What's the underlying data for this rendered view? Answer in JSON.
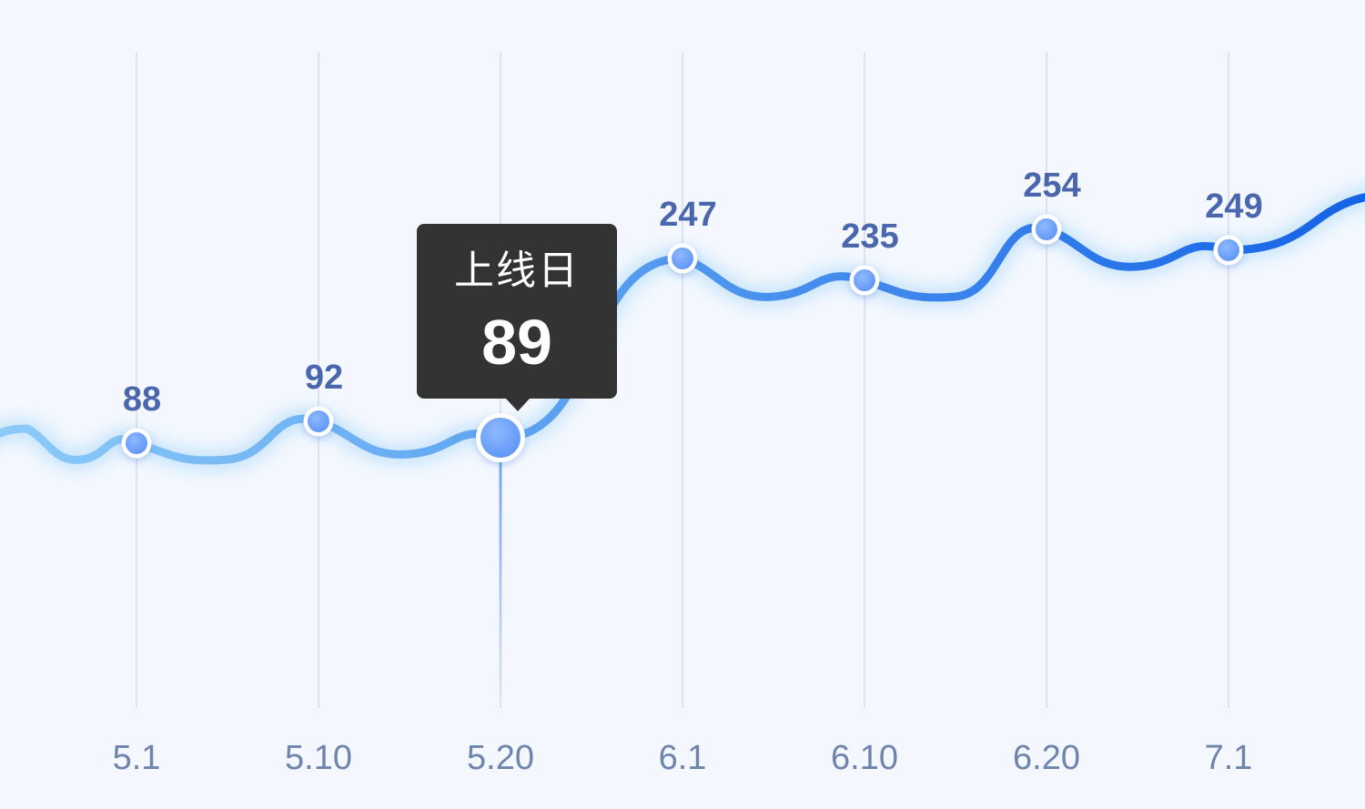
{
  "chart_data": {
    "type": "line",
    "categories": [
      "5.1",
      "5.10",
      "5.20",
      "6.1",
      "6.10",
      "6.20",
      "7.1"
    ],
    "points": [
      {
        "x": "5.1",
        "value": 88,
        "label": "88"
      },
      {
        "x": "5.10",
        "value": 92,
        "label": "92"
      },
      {
        "x": "5.20",
        "value": 89,
        "label": ""
      },
      {
        "x": "6.1",
        "value": 247,
        "label": "247"
      },
      {
        "x": "6.10",
        "value": 235,
        "label": "235"
      },
      {
        "x": "6.20",
        "value": 254,
        "label": "254"
      },
      {
        "x": "7.1",
        "value": 249,
        "label": "249"
      }
    ],
    "title": "",
    "xlabel": "",
    "ylabel": "",
    "grid": "vertical",
    "legend": "none",
    "smooth": true,
    "tooltip": {
      "category": "5.20",
      "title": "上线日",
      "value": "89"
    },
    "colors": {
      "line_start": "#8ccbf8",
      "line_end": "#1463e6",
      "marker": "#5f95f6",
      "marker_border": "#ffffff",
      "value_label": "#4a67ad",
      "tick_label": "#6e84ad",
      "grid": "#d3dbeb",
      "tooltip_bg": "#333333",
      "background": "#f4f8fe"
    }
  }
}
